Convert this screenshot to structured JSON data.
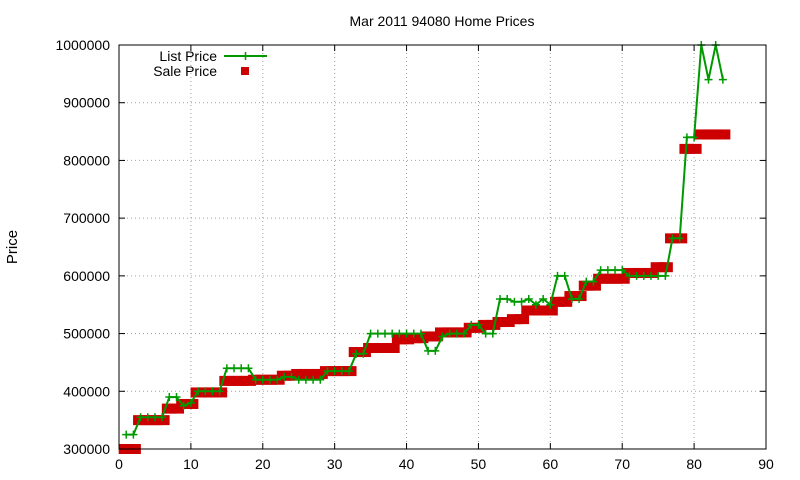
{
  "chart_data": {
    "type": "line",
    "title": "Mar 2011 94080 Home Prices",
    "xlabel": "",
    "ylabel": "Price",
    "xlim": [
      0,
      90
    ],
    "ylim": [
      300000,
      1000000
    ],
    "x_ticks": [
      0,
      10,
      20,
      30,
      40,
      50,
      60,
      70,
      80,
      90
    ],
    "y_ticks": [
      300000,
      400000,
      500000,
      600000,
      700000,
      800000,
      900000,
      1000000
    ],
    "grid": true,
    "legend_position": "top-left",
    "series": [
      {
        "name": "List Price",
        "style": "lines+points",
        "color": "#009900",
        "x": [
          1,
          2,
          3,
          4,
          5,
          6,
          7,
          8,
          9,
          10,
          11,
          12,
          13,
          14,
          15,
          16,
          17,
          18,
          19,
          20,
          21,
          22,
          23,
          24,
          25,
          26,
          27,
          28,
          29,
          30,
          31,
          32,
          33,
          34,
          35,
          36,
          37,
          38,
          39,
          40,
          41,
          42,
          43,
          44,
          45,
          46,
          47,
          48,
          49,
          50,
          51,
          52,
          53,
          54,
          55,
          56,
          57,
          58,
          59,
          60,
          61,
          62,
          63,
          64,
          65,
          66,
          67,
          68,
          69,
          70,
          71,
          72,
          73,
          74,
          75,
          76,
          77,
          78,
          79,
          80,
          81,
          82,
          83,
          84
        ],
        "y": [
          325000,
          325000,
          355000,
          355000,
          355000,
          355000,
          390000,
          390000,
          375000,
          380000,
          400000,
          400000,
          400000,
          400000,
          440000,
          440000,
          440000,
          440000,
          420000,
          420000,
          420000,
          420000,
          425000,
          425000,
          420000,
          420000,
          420000,
          420000,
          435000,
          435000,
          435000,
          435000,
          465000,
          465000,
          500000,
          500000,
          500000,
          500000,
          500000,
          500000,
          500000,
          500000,
          470000,
          470000,
          495000,
          500000,
          500000,
          500000,
          515000,
          515000,
          500000,
          500000,
          560000,
          560000,
          555000,
          555000,
          560000,
          550000,
          560000,
          550000,
          600000,
          600000,
          560000,
          560000,
          590000,
          590000,
          610000,
          610000,
          610000,
          610000,
          600000,
          600000,
          600000,
          600000,
          600000,
          600000,
          665000,
          665000,
          840000,
          840000,
          1000000,
          940000,
          1000000,
          940000
        ]
      },
      {
        "name": "Sale Price",
        "style": "points",
        "color": "#cc0000",
        "x": [
          1,
          2,
          3,
          4,
          5,
          6,
          7,
          8,
          9,
          10,
          11,
          12,
          13,
          14,
          15,
          16,
          17,
          18,
          19,
          20,
          21,
          22,
          23,
          24,
          25,
          26,
          27,
          28,
          29,
          30,
          31,
          32,
          33,
          34,
          35,
          36,
          37,
          38,
          39,
          40,
          41,
          42,
          43,
          44,
          45,
          46,
          47,
          48,
          49,
          50,
          51,
          52,
          53,
          54,
          55,
          56,
          57,
          58,
          59,
          60,
          61,
          62,
          63,
          64,
          65,
          66,
          67,
          68,
          69,
          70,
          71,
          72,
          73,
          74,
          75,
          76,
          77,
          78,
          79,
          80,
          81,
          82,
          83,
          84
        ],
        "y": [
          300000,
          300000,
          350000,
          350000,
          350000,
          350000,
          370000,
          370000,
          378000,
          378000,
          398000,
          398000,
          398000,
          398000,
          418000,
          418000,
          418000,
          418000,
          420000,
          420000,
          420000,
          420000,
          427000,
          427000,
          430000,
          430000,
          430000,
          430000,
          435000,
          435000,
          435000,
          435000,
          468000,
          468000,
          475000,
          475000,
          475000,
          475000,
          490000,
          490000,
          492000,
          492000,
          495000,
          495000,
          502000,
          502000,
          502000,
          502000,
          510000,
          510000,
          515000,
          515000,
          520000,
          520000,
          525000,
          525000,
          540000,
          540000,
          540000,
          540000,
          555000,
          555000,
          565000,
          565000,
          583000,
          583000,
          595000,
          595000,
          595000,
          595000,
          605000,
          605000,
          605000,
          605000,
          615000,
          615000,
          665000,
          665000,
          820000,
          820000,
          845000,
          845000,
          845000,
          845000
        ]
      }
    ]
  }
}
